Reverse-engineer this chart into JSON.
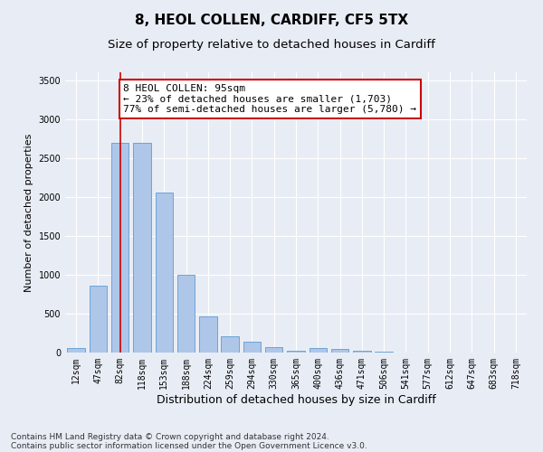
{
  "title1": "8, HEOL COLLEN, CARDIFF, CF5 5TX",
  "title2": "Size of property relative to detached houses in Cardiff",
  "xlabel": "Distribution of detached houses by size in Cardiff",
  "ylabel": "Number of detached properties",
  "categories": [
    "12sqm",
    "47sqm",
    "82sqm",
    "118sqm",
    "153sqm",
    "188sqm",
    "224sqm",
    "259sqm",
    "294sqm",
    "330sqm",
    "365sqm",
    "400sqm",
    "436sqm",
    "471sqm",
    "506sqm",
    "541sqm",
    "577sqm",
    "612sqm",
    "647sqm",
    "683sqm",
    "718sqm"
  ],
  "values": [
    55,
    860,
    2700,
    2700,
    2050,
    1000,
    460,
    210,
    145,
    65,
    20,
    55,
    45,
    25,
    10,
    5,
    5,
    3,
    2,
    2,
    2
  ],
  "bar_color": "#aec6e8",
  "bar_edge_color": "#5b9bd5",
  "vline_x": 2,
  "vline_color": "#cc0000",
  "annotation_text": "8 HEOL COLLEN: 95sqm\n← 23% of detached houses are smaller (1,703)\n77% of semi-detached houses are larger (5,780) →",
  "annotation_box_color": "#ffffff",
  "annotation_box_edge": "#cc0000",
  "ylim": [
    0,
    3600
  ],
  "yticks": [
    0,
    500,
    1000,
    1500,
    2000,
    2500,
    3000,
    3500
  ],
  "bg_color": "#e8edf5",
  "plot_bg_color": "#e8edf5",
  "footer1": "Contains HM Land Registry data © Crown copyright and database right 2024.",
  "footer2": "Contains public sector information licensed under the Open Government Licence v3.0.",
  "title1_fontsize": 11,
  "title2_fontsize": 9.5,
  "xlabel_fontsize": 9,
  "ylabel_fontsize": 8,
  "tick_fontsize": 7,
  "footer_fontsize": 6.5,
  "annotation_fontsize": 8
}
